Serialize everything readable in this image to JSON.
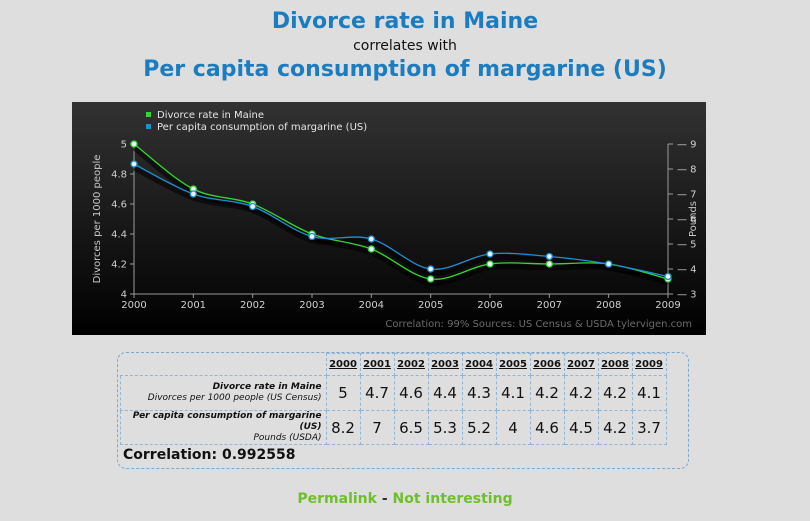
{
  "header": {
    "title1": "Divorce rate in Maine",
    "connector": "correlates with",
    "title2": "Per capita consumption of margarine (US)"
  },
  "chart_data": {
    "type": "line",
    "x": [
      2000,
      2001,
      2002,
      2003,
      2004,
      2005,
      2006,
      2007,
      2008,
      2009
    ],
    "xticks": [
      "2000",
      "2001",
      "2002",
      "2003",
      "2004",
      "2005",
      "2006",
      "2007",
      "2008",
      "2009"
    ],
    "series": [
      {
        "name": "Divorce rate in Maine",
        "axis": "left",
        "color": "#33d633",
        "values": [
          5,
          4.7,
          4.6,
          4.4,
          4.3,
          4.1,
          4.2,
          4.2,
          4.2,
          4.1
        ]
      },
      {
        "name": "Per capita consumption of margarine (US)",
        "axis": "right",
        "color": "#1f8fd0",
        "values": [
          8.2,
          7,
          6.5,
          5.3,
          5.2,
          4,
          4.6,
          4.5,
          4.2,
          3.7
        ]
      }
    ],
    "ylabel_left": "Divorces per 1000 people",
    "ylabel_right": "Pounds",
    "ylim_left": [
      4,
      5
    ],
    "ylim_right": [
      3,
      9
    ],
    "yticks_left": [
      "4",
      "4.2",
      "4.4",
      "4.6",
      "4.8",
      "5"
    ],
    "yticks_right": [
      "3",
      "4",
      "5",
      "6",
      "7",
      "8",
      "9"
    ],
    "legend_position": "top-left",
    "footer": "Correlation: 99%    Sources: US Census & USDA   tylervigen.com"
  },
  "table": {
    "years": [
      "2000",
      "2001",
      "2002",
      "2003",
      "2004",
      "2005",
      "2006",
      "2007",
      "2008",
      "2009"
    ],
    "rows": [
      {
        "label": "Divorce rate in Maine",
        "sublabel": "Divorces per 1000 people (US Census)",
        "values": [
          "5",
          "4.7",
          "4.6",
          "4.4",
          "4.3",
          "4.1",
          "4.2",
          "4.2",
          "4.2",
          "4.1"
        ]
      },
      {
        "label": "Per capita consumption of margarine (US)",
        "sublabel": "Pounds (USDA)",
        "values": [
          "8.2",
          "7",
          "6.5",
          "5.3",
          "5.2",
          "4",
          "4.6",
          "4.5",
          "4.2",
          "3.7"
        ]
      }
    ],
    "correlation": "Correlation: 0.992558"
  },
  "links": {
    "permalink": "Permalink",
    "separator": "-",
    "not_interesting": "Not interesting"
  }
}
